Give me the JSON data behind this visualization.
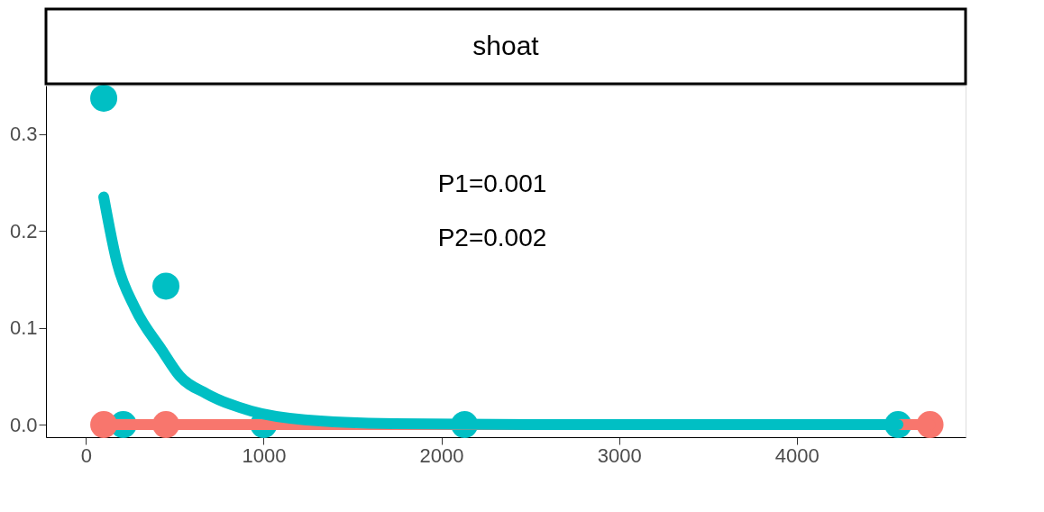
{
  "chart_data": {
    "type": "scatter",
    "title": "shoat",
    "series": [
      {
        "color": "#00bfc4",
        "marker": "circle",
        "x": [
          100,
          210,
          450,
          1000,
          2130,
          4570
        ],
        "values": [
          0.337,
          0,
          0.143,
          0,
          0,
          0
        ]
      },
      {
        "color": "#f8766d",
        "marker": "circle",
        "x": [
          100,
          450,
          4750
        ],
        "values": [
          0,
          0,
          0
        ]
      },
      {
        "type": "line",
        "color": "#f8766d",
        "x": [
          100,
          4750
        ],
        "values": [
          0,
          0
        ]
      },
      {
        "type": "line",
        "color": "#00bfc4",
        "x": [
          100,
          175,
          277,
          427,
          528,
          678,
          930,
          1231,
          1734,
          2500,
          3500,
          4570
        ],
        "values": [
          0.235,
          0.167,
          0.12,
          0.077,
          0.05,
          0.032,
          0.014,
          0.005,
          0.001,
          0,
          0,
          0
        ]
      }
    ],
    "annotations": [
      "P1=0.001",
      "P2=0.002"
    ],
    "xlim": [
      -225,
      4950
    ],
    "xticks": [
      0,
      1000,
      2000,
      3000,
      4000
    ],
    "ylim": [
      -0.013,
      0.35
    ],
    "yticks": [
      {
        "value": 0,
        "label": "0.0"
      },
      0.1,
      0.2,
      0.3
    ],
    "grid": false
  }
}
